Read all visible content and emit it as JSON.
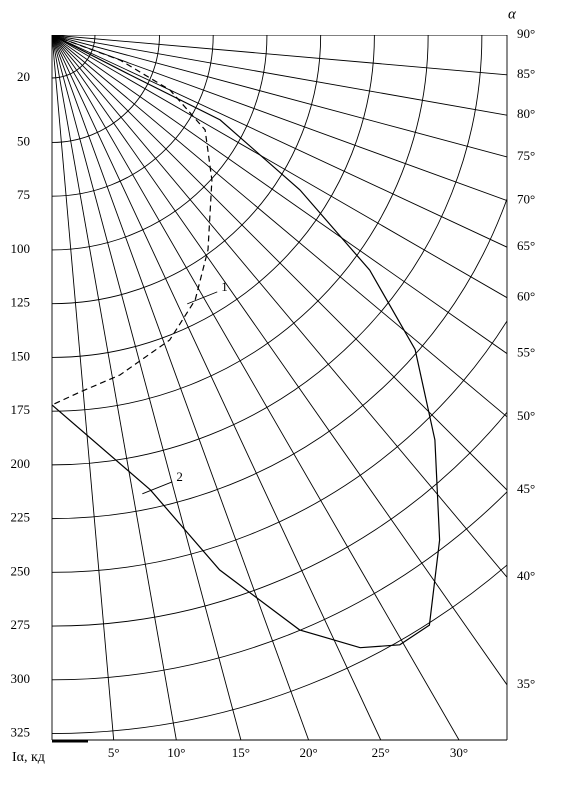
{
  "chart_data": {
    "type": "polar",
    "angle_label": "α",
    "r_label": "Iα, кд",
    "rlim": [
      0,
      328
    ],
    "rticks": [
      20,
      50,
      75,
      100,
      125,
      150,
      175,
      200,
      225,
      250,
      275,
      300,
      325
    ],
    "angle_ticks": [
      {
        "value": 5,
        "label": "5°"
      },
      {
        "value": 10,
        "label": "10°"
      },
      {
        "value": 15,
        "label": "15°"
      },
      {
        "value": 20,
        "label": "20°"
      },
      {
        "value": 25,
        "label": "25°"
      },
      {
        "value": 30,
        "label": "30°"
      },
      {
        "value": 35,
        "label": "35°"
      },
      {
        "value": 40,
        "label": "40°"
      },
      {
        "value": 45,
        "label": "45°"
      },
      {
        "value": 50,
        "label": "50°"
      },
      {
        "value": 55,
        "label": "55°"
      },
      {
        "value": 60,
        "label": "60°"
      },
      {
        "value": 65,
        "label": "65°"
      },
      {
        "value": 70,
        "label": "70°"
      },
      {
        "value": 75,
        "label": "75°"
      },
      {
        "value": 80,
        "label": "80°"
      },
      {
        "value": 85,
        "label": "85°"
      },
      {
        "value": 90,
        "label": "90°"
      }
    ],
    "series": [
      {
        "name": "1",
        "color": "#000000",
        "line_style": "dashed",
        "angles": [
          90,
          69.8,
          65.0,
          58.2,
          47.8,
          36.0,
          28.4,
          21.1,
          11.3,
          4.5,
          0
        ],
        "values": [
          0,
          33.7,
          60.6,
          83.8,
          100.4,
          123.5,
          140.1,
          152.1,
          161.3,
          166.6,
          172.1
        ]
      },
      {
        "name": "2",
        "color": "#000000",
        "line_style": "solid",
        "angles": [
          90,
          62.9,
          63.2,
          58.0,
          53.5,
          49.1,
          43.4,
          37.5,
          32.6,
          29.7,
          26.7,
          22.6,
          17.4,
          12.2,
          0
        ],
        "values": [
          0,
          40.8,
          87.6,
          136.0,
          183.9,
          223.5,
          259.3,
          296.2,
          325.9,
          326.6,
          319.1,
          299.8,
          260.8,
          216.5,
          172.1
        ]
      }
    ]
  }
}
